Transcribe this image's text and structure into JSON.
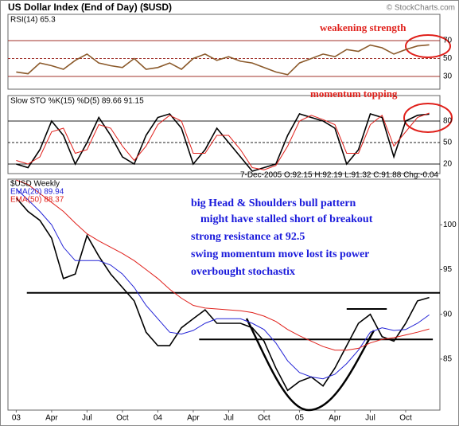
{
  "chart_data": [
    {
      "type": "line",
      "title": "US Dollar Index (End of Day) ($USD)",
      "credit": "© StockCharts.com",
      "subtitle": "RSI(14) 65.3",
      "annotations": [
        {
          "text": "weakening strength",
          "color": "#e0201b"
        }
      ],
      "x": [
        0,
        1,
        2,
        3,
        4,
        5,
        6,
        7,
        8,
        9,
        10,
        11,
        12,
        13,
        14,
        15,
        16,
        17,
        18,
        19,
        20,
        21,
        22,
        23,
        24,
        25,
        26,
        27,
        28,
        29,
        30,
        31,
        32,
        33,
        34,
        35
      ],
      "xlim": [
        -0.7,
        35.9
      ],
      "ylim": [
        15.8,
        99.3
      ],
      "yticks": [
        30,
        50,
        70
      ],
      "grid": true,
      "grid_color": "#a0302a",
      "series": [
        {
          "name": "RSI(14)",
          "color": "#8b5a2b",
          "values": [
            35,
            33,
            45,
            42,
            38,
            48,
            55,
            45,
            42,
            40,
            50,
            38,
            40,
            45,
            38,
            50,
            55,
            48,
            52,
            47,
            45,
            40,
            35,
            32,
            45,
            50,
            55,
            52,
            60,
            58,
            65,
            62,
            55,
            60,
            64,
            65.3
          ]
        }
      ]
    },
    {
      "type": "line",
      "subtitle": "Slow STO %K(15) %D(5) 89.66 91.15",
      "annotations": [
        {
          "text": "momentum topping",
          "color": "#e0201b"
        }
      ],
      "x": [
        0,
        1,
        2,
        3,
        4,
        5,
        6,
        7,
        8,
        9,
        10,
        11,
        12,
        13,
        14,
        15,
        16,
        17,
        18,
        19,
        20,
        21,
        22,
        23,
        24,
        25,
        26,
        27,
        28,
        29,
        30,
        31,
        32,
        33,
        34,
        35
      ],
      "xlim": [
        -0.7,
        35.9
      ],
      "ylim": [
        6.7,
        115.6
      ],
      "yticks": [
        20,
        50,
        80
      ],
      "grid": true,
      "grid_color": "#222222",
      "series": [
        {
          "name": "%K(15)",
          "color": "#000000",
          "values": [
            20,
            15,
            40,
            80,
            60,
            20,
            50,
            85,
            60,
            30,
            20,
            60,
            85,
            90,
            70,
            20,
            40,
            70,
            50,
            30,
            10,
            15,
            20,
            60,
            90,
            85,
            80,
            70,
            20,
            40,
            90,
            85,
            30,
            80,
            88,
            89.66
          ]
        },
        {
          "name": "%D(5)",
          "color": "#e0201b",
          "values": [
            25,
            20,
            30,
            65,
            70,
            35,
            40,
            75,
            70,
            45,
            25,
            45,
            75,
            88,
            80,
            35,
            35,
            60,
            60,
            40,
            15,
            12,
            18,
            45,
            80,
            88,
            82,
            75,
            35,
            35,
            75,
            88,
            45,
            65,
            85,
            91.15
          ]
        }
      ]
    },
    {
      "type": "line",
      "subtitle": "7-Dec-2005 O:92.15 H:92.19 L:91.32 C:91.88 Chg:-0.04",
      "annotations": [
        {
          "text": "big Head & Shoulders bull pattern",
          "color": "#1a1adb"
        },
        {
          "text": "might have stalled short of breakout",
          "color": "#1a1adb"
        },
        {
          "text": "strong resistance at 92.5",
          "color": "#1a1adb"
        },
        {
          "text": "swing momentum move lost its power",
          "color": "#1a1adb"
        },
        {
          "text": "overbought stochastix",
          "color": "#1a1adb"
        }
      ],
      "x": [
        0,
        1,
        2,
        3,
        4,
        5,
        6,
        7,
        8,
        9,
        10,
        11,
        12,
        13,
        14,
        15,
        16,
        17,
        18,
        19,
        20,
        21,
        22,
        23,
        24,
        25,
        26,
        27,
        28,
        29,
        30,
        31,
        32,
        33,
        34,
        35
      ],
      "xlim": [
        -0.7,
        35.9
      ],
      "ylim": [
        79.3,
        105.1
      ],
      "yticks": [
        85,
        90,
        95,
        100
      ],
      "grid": false,
      "xticks": [
        {
          "value": 0,
          "label": "03"
        },
        {
          "value": 3,
          "label": "Apr"
        },
        {
          "value": 6,
          "label": "Jul"
        },
        {
          "value": 9,
          "label": "Oct"
        },
        {
          "value": 12,
          "label": "04"
        },
        {
          "value": 15,
          "label": "Apr"
        },
        {
          "value": 18,
          "label": "Jul"
        },
        {
          "value": 21,
          "label": "Oct"
        },
        {
          "value": 24,
          "label": "05"
        },
        {
          "value": 27,
          "label": "Apr"
        },
        {
          "value": 30,
          "label": "Jul"
        },
        {
          "value": 33,
          "label": "Oct"
        }
      ],
      "hlines": [
        {
          "y": 92.4,
          "x": [
            0.9,
            35.9
          ]
        },
        {
          "y": 87.2,
          "x": [
            15.5,
            35.3
          ]
        },
        {
          "y": 90.6,
          "x": [
            28,
            31.4
          ]
        }
      ],
      "series": [
        {
          "name": "$USD Weekly",
          "color": "#000000",
          "values": [
            103,
            101.5,
            100.5,
            98.5,
            94,
            94.5,
            98.8,
            96.5,
            94.5,
            93,
            91.5,
            88,
            86.5,
            86.5,
            88.5,
            89.5,
            90.5,
            89,
            89,
            89,
            88.5,
            87,
            84,
            81.5,
            82.5,
            83,
            82,
            84,
            86.5,
            89,
            90,
            87.5,
            87,
            89,
            91.5,
            91.88
          ]
        },
        {
          "name": "EMA(20) 89.94",
          "color": "#2323d6",
          "values": [
            104,
            102.8,
            101.5,
            100,
            97.5,
            96,
            96,
            96,
            95.5,
            94.5,
            93,
            91,
            89.5,
            88,
            87.8,
            88.2,
            89,
            89.5,
            89.5,
            89.5,
            89,
            88.3,
            86.8,
            84.8,
            83.5,
            83,
            82.8,
            83.3,
            84.5,
            86,
            88,
            88.5,
            88.2,
            88.3,
            89,
            89.94
          ]
        },
        {
          "name": "EMA(50) 88.37",
          "color": "#e0201b",
          "values": [
            105,
            104.5,
            103.5,
            102.5,
            101.5,
            100.2,
            99,
            98.2,
            97.5,
            96.8,
            96,
            95,
            94,
            92.8,
            91.8,
            91,
            90.7,
            90.6,
            90.5,
            90.4,
            90.2,
            89.8,
            89.2,
            88.3,
            87.6,
            87,
            86.4,
            86,
            86,
            86.2,
            86.8,
            87.2,
            87.4,
            87.7,
            88,
            88.37
          ]
        }
      ]
    }
  ]
}
